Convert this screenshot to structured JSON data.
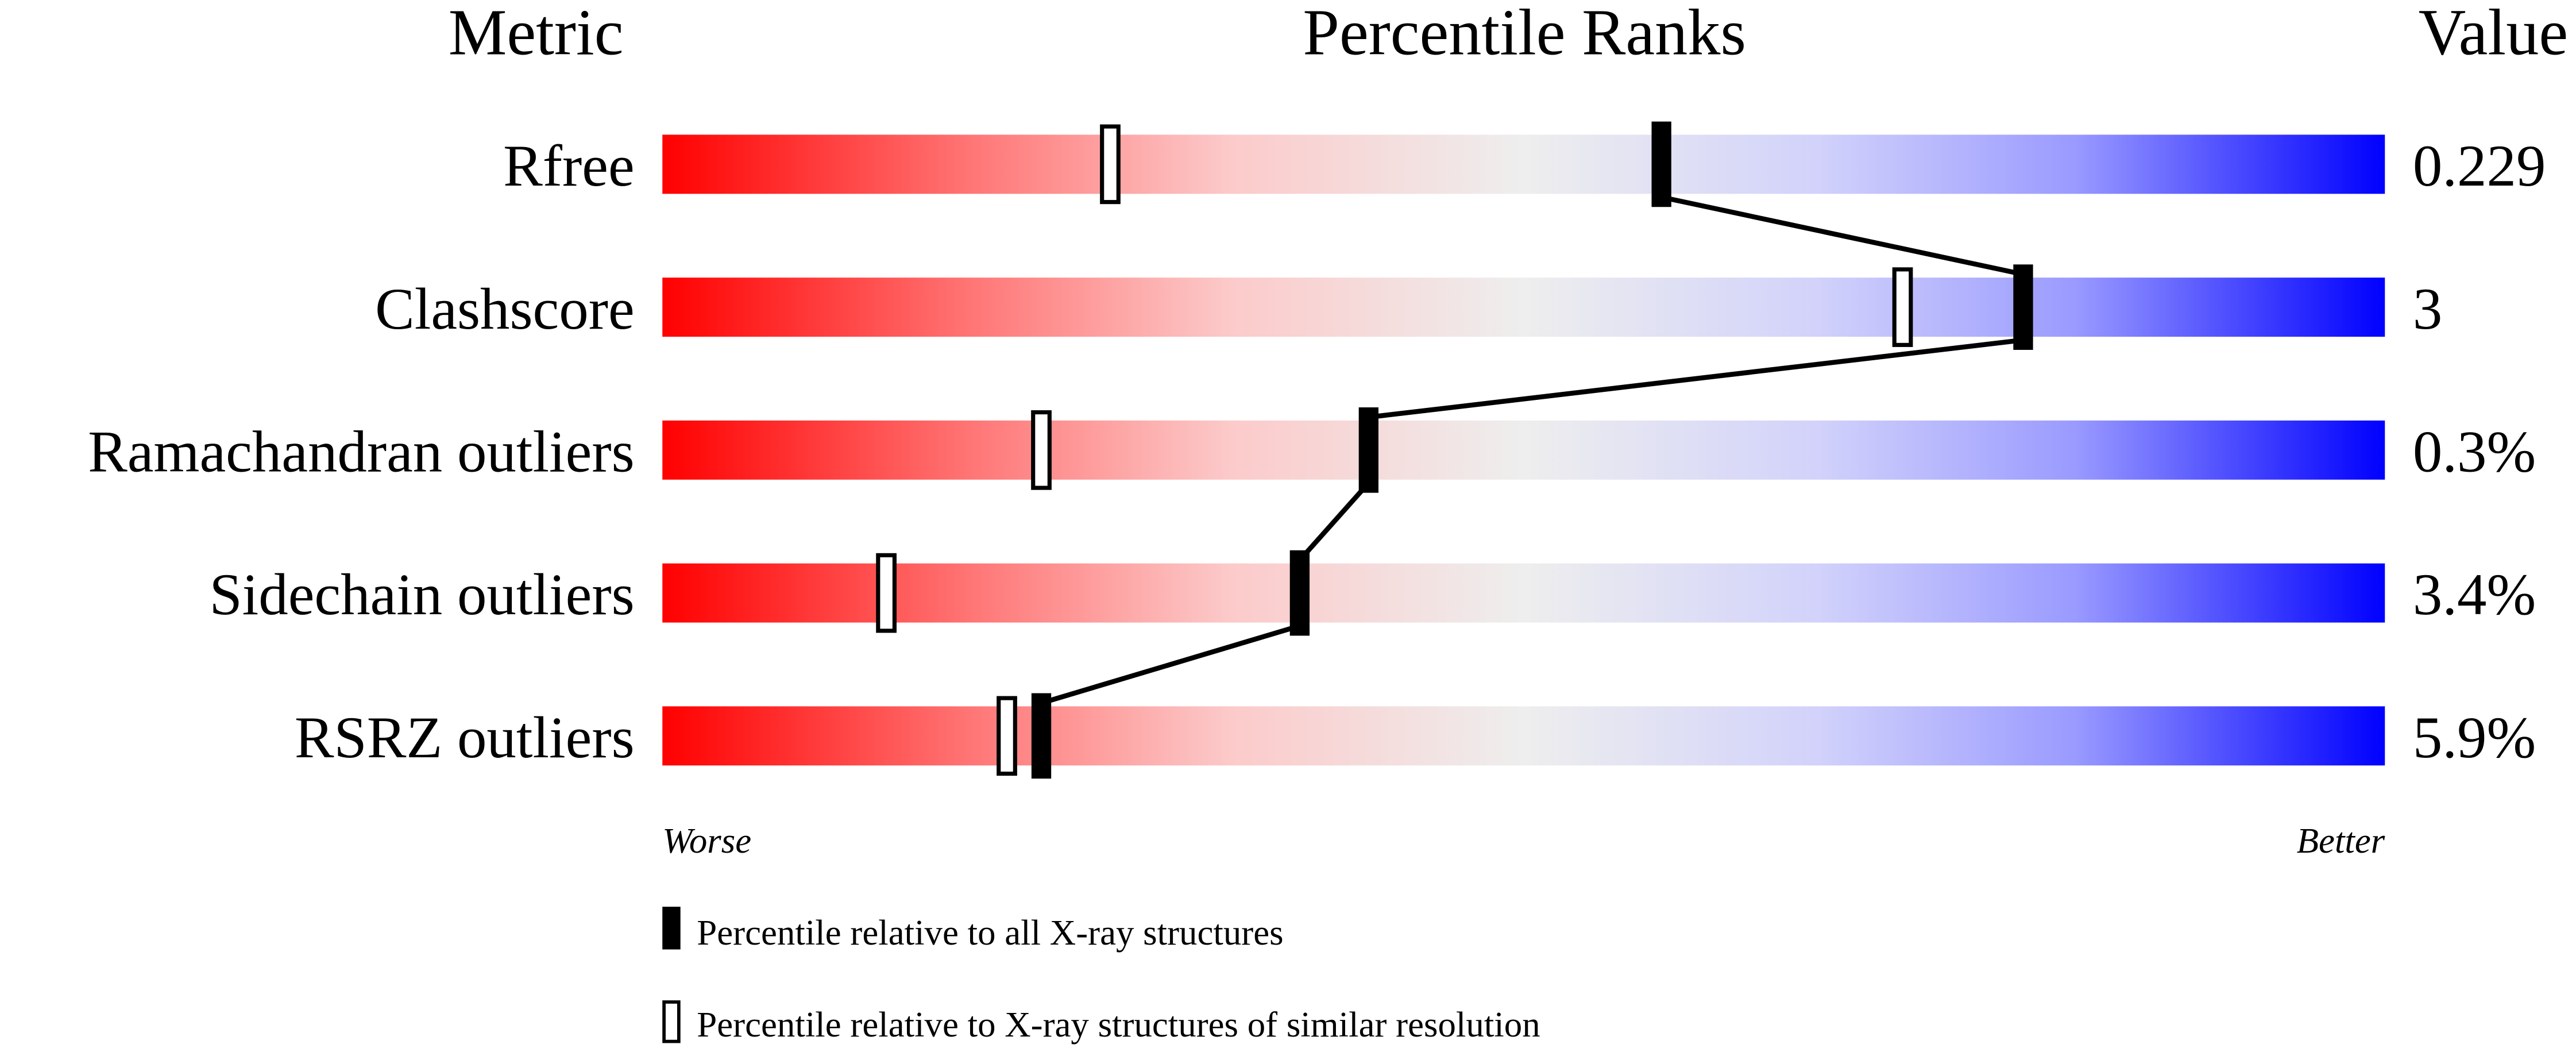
{
  "chart_data": {
    "type": "percentile-bar",
    "headers": {
      "metric": "Metric",
      "ranks": "Percentile Ranks",
      "value": "Value"
    },
    "xlim": [
      0,
      100
    ],
    "axis_ends": {
      "low": "Worse",
      "high": "Better"
    },
    "gradient_colors": [
      "#ff0000",
      "#eeeeee",
      "#0000ff"
    ],
    "metrics": [
      {
        "name": "Rfree",
        "value": "0.229",
        "percentile_all": 58,
        "percentile_similar": 26
      },
      {
        "name": "Clashscore",
        "value": "3",
        "percentile_all": 79,
        "percentile_similar": 72
      },
      {
        "name": "Ramachandran outliers",
        "value": "0.3%",
        "percentile_all": 41,
        "percentile_similar": 22
      },
      {
        "name": "Sidechain outliers",
        "value": "3.4%",
        "percentile_all": 37,
        "percentile_similar": 13
      },
      {
        "name": "RSRZ outliers",
        "value": "5.9%",
        "percentile_all": 22,
        "percentile_similar": 20
      }
    ],
    "legend": [
      {
        "marker": "filled",
        "label": "Percentile relative to all X-ray structures"
      },
      {
        "marker": "open",
        "label": "Percentile relative to X-ray structures of similar resolution"
      }
    ]
  }
}
